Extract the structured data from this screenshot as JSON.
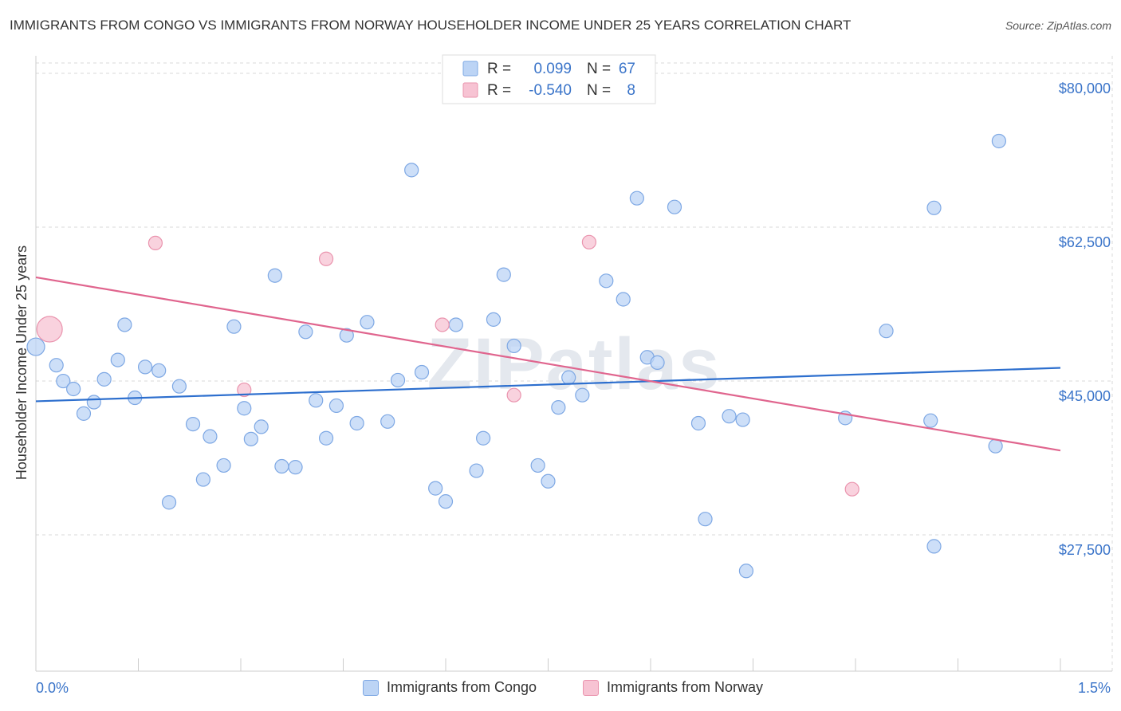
{
  "header": {
    "title": "IMMIGRANTS FROM CONGO VS IMMIGRANTS FROM NORWAY HOUSEHOLDER INCOME UNDER 25 YEARS CORRELATION CHART",
    "source": "Source: ZipAtlas.com"
  },
  "watermark": "ZIPatlas",
  "colors": {
    "congo_fill": "#bcd4f5",
    "congo_stroke": "#7ea8e4",
    "congo_line": "#2d6fce",
    "norway_fill": "#f7c3d3",
    "norway_stroke": "#ea94ae",
    "norway_line": "#e0658e",
    "axis_text": "#3a74c9",
    "grid": "#d9d9d9"
  },
  "legend": {
    "rows": [
      {
        "r_label": "R =",
        "r_value": "0.099",
        "n_label": "N =",
        "n_value": "67"
      },
      {
        "r_label": "R =",
        "r_value": "-0.540",
        "n_label": "N =",
        "n_value": "8"
      }
    ]
  },
  "chart_data": {
    "type": "scatter",
    "title": "IMMIGRANTS FROM CONGO VS IMMIGRANTS FROM NORWAY HOUSEHOLDER INCOME UNDER 25 YEARS CORRELATION CHART",
    "xlabel": "",
    "ylabel": "Householder Income Under 25 years",
    "x_tick_labels": [
      "0.0%",
      "1.5%"
    ],
    "y_ticks": [
      {
        "value": 27500,
        "label": "$27,500"
      },
      {
        "value": 45000,
        "label": "$45,000"
      },
      {
        "value": 62500,
        "label": "$62,500"
      },
      {
        "value": 80000,
        "label": "$80,000"
      }
    ],
    "xlim": [
      0,
      1.5
    ],
    "ylim": [
      12000,
      82000
    ],
    "grid": true,
    "legend_position": "bottom",
    "series": [
      {
        "name": "Immigrants from Congo",
        "r": 0.099,
        "n": 67,
        "trend": [
          [
            0.0,
            42700
          ],
          [
            1.5,
            46500
          ]
        ],
        "points": [
          {
            "x": 0.0,
            "y": 48900,
            "s": "l"
          },
          {
            "x": 0.03,
            "y": 46800
          },
          {
            "x": 0.04,
            "y": 45000
          },
          {
            "x": 0.055,
            "y": 44100
          },
          {
            "x": 0.07,
            "y": 41300
          },
          {
            "x": 0.085,
            "y": 42600
          },
          {
            "x": 0.1,
            "y": 45200
          },
          {
            "x": 0.12,
            "y": 47400
          },
          {
            "x": 0.13,
            "y": 51400
          },
          {
            "x": 0.145,
            "y": 43100
          },
          {
            "x": 0.16,
            "y": 46600
          },
          {
            "x": 0.18,
            "y": 46200
          },
          {
            "x": 0.195,
            "y": 31200
          },
          {
            "x": 0.21,
            "y": 44400
          },
          {
            "x": 0.23,
            "y": 40100
          },
          {
            "x": 0.245,
            "y": 33800
          },
          {
            "x": 0.255,
            "y": 38700
          },
          {
            "x": 0.275,
            "y": 35400
          },
          {
            "x": 0.29,
            "y": 51200
          },
          {
            "x": 0.305,
            "y": 41900
          },
          {
            "x": 0.315,
            "y": 38400
          },
          {
            "x": 0.33,
            "y": 39800
          },
          {
            "x": 0.35,
            "y": 57000
          },
          {
            "x": 0.36,
            "y": 35300
          },
          {
            "x": 0.38,
            "y": 35200
          },
          {
            "x": 0.395,
            "y": 50600
          },
          {
            "x": 0.41,
            "y": 42800
          },
          {
            "x": 0.425,
            "y": 38500
          },
          {
            "x": 0.44,
            "y": 42200
          },
          {
            "x": 0.455,
            "y": 50200
          },
          {
            "x": 0.47,
            "y": 40200
          },
          {
            "x": 0.485,
            "y": 51700
          },
          {
            "x": 0.515,
            "y": 40400
          },
          {
            "x": 0.53,
            "y": 45100
          },
          {
            "x": 0.55,
            "y": 69000
          },
          {
            "x": 0.565,
            "y": 46000
          },
          {
            "x": 0.585,
            "y": 32800
          },
          {
            "x": 0.6,
            "y": 31300
          },
          {
            "x": 0.615,
            "y": 51400
          },
          {
            "x": 0.645,
            "y": 34800
          },
          {
            "x": 0.655,
            "y": 38500
          },
          {
            "x": 0.67,
            "y": 52000
          },
          {
            "x": 0.685,
            "y": 57100
          },
          {
            "x": 0.7,
            "y": 49000
          },
          {
            "x": 0.735,
            "y": 35400
          },
          {
            "x": 0.75,
            "y": 33600
          },
          {
            "x": 0.765,
            "y": 42000
          },
          {
            "x": 0.78,
            "y": 45400
          },
          {
            "x": 0.8,
            "y": 43400
          },
          {
            "x": 0.835,
            "y": 56400
          },
          {
            "x": 0.86,
            "y": 54300
          },
          {
            "x": 0.88,
            "y": 65800
          },
          {
            "x": 0.895,
            "y": 47700
          },
          {
            "x": 0.91,
            "y": 47100
          },
          {
            "x": 0.935,
            "y": 64800
          },
          {
            "x": 0.97,
            "y": 40200
          },
          {
            "x": 0.98,
            "y": 29300
          },
          {
            "x": 1.015,
            "y": 41000
          },
          {
            "x": 1.035,
            "y": 40600
          },
          {
            "x": 1.04,
            "y": 23400
          },
          {
            "x": 1.185,
            "y": 40800
          },
          {
            "x": 1.245,
            "y": 50700
          },
          {
            "x": 1.31,
            "y": 40500
          },
          {
            "x": 1.315,
            "y": 26200
          },
          {
            "x": 1.315,
            "y": 64700
          },
          {
            "x": 1.405,
            "y": 37600
          },
          {
            "x": 1.41,
            "y": 72300
          }
        ]
      },
      {
        "name": "Immigrants from Norway",
        "r": -0.54,
        "n": 8,
        "trend": [
          [
            0.0,
            56800
          ],
          [
            1.5,
            37100
          ]
        ],
        "points": [
          {
            "x": 0.02,
            "y": 50900,
            "s": "xl"
          },
          {
            "x": 0.175,
            "y": 60700
          },
          {
            "x": 0.425,
            "y": 58900
          },
          {
            "x": 0.305,
            "y": 44000
          },
          {
            "x": 0.595,
            "y": 51400
          },
          {
            "x": 0.7,
            "y": 43400
          },
          {
            "x": 0.81,
            "y": 60800
          },
          {
            "x": 1.195,
            "y": 32700
          }
        ]
      }
    ]
  }
}
